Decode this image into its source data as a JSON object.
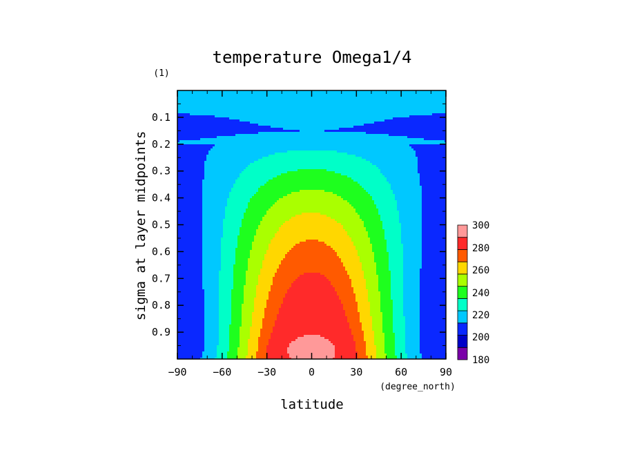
{
  "chart_data": {
    "type": "heatmap",
    "title": "temperature Omega1/4",
    "xlabel": "latitude",
    "x_units": "(degree_north)",
    "ylabel": "sigma at layer midpoints",
    "y_units": "(1)",
    "xlim": [
      -90,
      90
    ],
    "ylim": [
      1.0,
      0.0
    ],
    "y_inverted": true,
    "x_ticks": [
      -90,
      -60,
      -30,
      0,
      30,
      60,
      90
    ],
    "x_tick_labels": [
      "−90",
      "−60",
      "−30",
      "0",
      "30",
      "60",
      "90"
    ],
    "y_ticks": [
      0.1,
      0.2,
      0.3,
      0.4,
      0.5,
      0.6,
      0.7,
      0.8,
      0.9
    ],
    "y_tick_labels": [
      "0.1",
      "0.2",
      "0.3",
      "0.4",
      "0.5",
      "0.6",
      "0.7",
      "0.8",
      "0.9"
    ],
    "colorbar": {
      "levels": [
        180,
        200,
        220,
        240,
        260,
        280,
        300
      ],
      "level_labels": [
        "180",
        "200",
        "220",
        "240",
        "260",
        "280",
        "300"
      ],
      "colors": [
        "#7a00a8",
        "#0000c8",
        "#0050ff",
        "#00c8ff",
        "#00ffc8",
        "#1eff1e",
        "#aaff00",
        "#ffd700",
        "#ff5a00",
        "#ff2a2a",
        "#ff9999"
      ]
    },
    "field_model": {
      "lat_halfwidth": [
        [
          0.0,
          140
        ],
        [
          0.08,
          140
        ],
        [
          0.2,
          100
        ],
        [
          0.3,
          90
        ],
        [
          0.5,
          85
        ],
        [
          0.7,
          82
        ],
        [
          0.85,
          80
        ],
        [
          0.97,
          80
        ],
        [
          1.0,
          82
        ]
      ],
      "profile_levels": [
        [
          0.0,
          214
        ],
        [
          0.05,
          218
        ],
        [
          0.1,
          212
        ],
        [
          0.15,
          210
        ],
        [
          0.2,
          217
        ],
        [
          0.3,
          231
        ],
        [
          0.4,
          244
        ],
        [
          0.5,
          255
        ],
        [
          0.6,
          264
        ],
        [
          0.7,
          272
        ],
        [
          0.8,
          279
        ],
        [
          0.9,
          286
        ],
        [
          0.95,
          289
        ],
        [
          1.0,
          290
        ]
      ],
      "column_levels": [
        [
          0.0,
          214
        ],
        [
          0.05,
          218
        ],
        [
          0.1,
          212
        ],
        [
          0.15,
          210
        ],
        [
          0.2,
          217
        ],
        [
          0.3,
          231
        ],
        [
          0.4,
          244
        ],
        [
          0.5,
          255
        ],
        [
          0.6,
          264
        ],
        [
          0.7,
          272
        ],
        [
          0.8,
          279
        ],
        [
          0.9,
          286
        ],
        [
          0.95,
          289
        ],
        [
          1.0,
          290
        ]
      ],
      "lat_weight_exponent": 1.6,
      "pole_floor": 206,
      "warm_core_amplitude": 12,
      "warm_core_center_sigma": 0.965,
      "warm_core_lat_halfwidth": 22,
      "warm_core_sigma_halfwidth": 0.05
    }
  }
}
